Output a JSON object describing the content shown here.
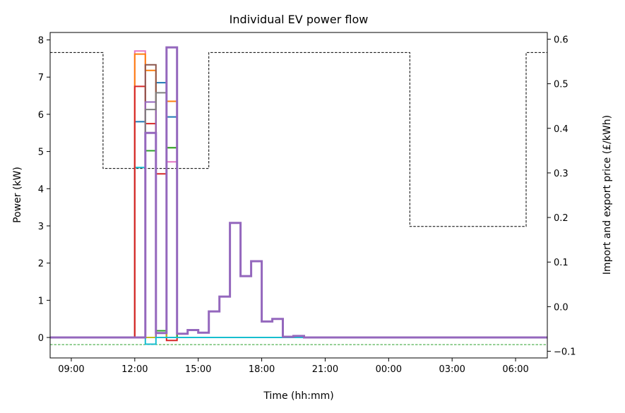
{
  "chart_data": {
    "type": "line",
    "title": "Individual EV power flow",
    "xlabel": "Time (hh:mm)",
    "ylabel": "Power (kW)",
    "y2label": "Import and export price (£/kWh)",
    "xlim": [
      8.0,
      31.5
    ],
    "ylim": [
      -0.55,
      8.2
    ],
    "y2lim": [
      -0.115,
      0.615
    ],
    "x_ticks": [
      9,
      12,
      15,
      18,
      21,
      24,
      27,
      30
    ],
    "x_tick_labels": [
      "09:00",
      "12:00",
      "15:00",
      "18:00",
      "21:00",
      "00:00",
      "03:00",
      "06:00"
    ],
    "y_ticks": [
      0,
      1,
      2,
      3,
      4,
      5,
      6,
      7,
      8
    ],
    "y_tick_labels": [
      "0",
      "1",
      "2",
      "3",
      "4",
      "5",
      "6",
      "7",
      "8"
    ],
    "y2_ticks": [
      -0.1,
      0.0,
      0.1,
      0.2,
      0.3,
      0.4,
      0.5,
      0.6
    ],
    "y2_tick_labels": [
      "−0.1",
      "0.0",
      "0.1",
      "0.2",
      "0.3",
      "0.4",
      "0.5",
      "0.6"
    ],
    "grid": false,
    "legend": "none",
    "import_price": {
      "axis": "right",
      "color": "#000000",
      "style": "dashed",
      "x": [
        8.0,
        10.5,
        10.5,
        15.5,
        15.5,
        25.0,
        25.0,
        30.5,
        30.5,
        31.5
      ],
      "y": [
        0.57,
        0.57,
        0.31,
        0.31,
        0.57,
        0.57,
        0.18,
        0.18,
        0.57,
        0.57
      ]
    },
    "export_price": {
      "axis": "right",
      "color": "#2ca02c",
      "style": "dashed",
      "x": [
        8.0,
        31.5
      ],
      "y": [
        -0.085,
        -0.085
      ]
    },
    "series": [
      {
        "color": "#17becf",
        "x": [
          8.0,
          12.0,
          12.0,
          12.5,
          12.5,
          31.5
        ],
        "y": [
          0,
          0,
          4.57,
          4.57,
          0,
          0
        ]
      },
      {
        "color": "#1f77b4",
        "x": [
          8.0,
          12.0,
          12.0,
          12.5,
          12.5,
          13.0,
          13.0,
          13.5,
          13.5,
          14.0,
          14.0,
          31.5
        ],
        "y": [
          0,
          0,
          5.8,
          5.8,
          0,
          0,
          6.85,
          6.85,
          5.93,
          5.93,
          0,
          0
        ]
      },
      {
        "color": "#e377c2",
        "x": [
          8.0,
          12.0,
          12.0,
          12.5,
          12.5,
          13.5,
          13.5,
          14.0,
          14.0,
          31.5
        ],
        "y": [
          0,
          0,
          7.7,
          7.7,
          0,
          0,
          4.72,
          4.72,
          0,
          0
        ]
      },
      {
        "color": "#ff7f0e",
        "x": [
          8.0,
          12.0,
          12.0,
          12.5,
          12.5,
          13.0,
          13.0,
          13.5,
          13.5,
          14.0,
          14.0,
          31.5
        ],
        "y": [
          0,
          0,
          7.62,
          7.62,
          7.18,
          7.18,
          0,
          0,
          6.35,
          6.35,
          0,
          0
        ]
      },
      {
        "color": "#d62728",
        "x": [
          8.0,
          12.0,
          12.0,
          12.5,
          12.5,
          13.0,
          13.0,
          13.5,
          13.5,
          14.0,
          14.0,
          31.5
        ],
        "y": [
          0,
          0,
          6.75,
          6.75,
          5.75,
          5.75,
          4.4,
          4.4,
          -0.08,
          -0.08,
          0,
          0
        ]
      },
      {
        "color": "#8c564b",
        "x": [
          8.0,
          12.5,
          12.5,
          13.0,
          13.0,
          31.5
        ],
        "y": [
          0,
          0,
          7.33,
          7.33,
          0,
          0
        ]
      },
      {
        "color": "#9467bd",
        "x": [
          8.0,
          12.5,
          12.5,
          13.0,
          13.0,
          31.5
        ],
        "y": [
          0,
          0,
          6.33,
          6.33,
          0,
          0
        ]
      },
      {
        "color": "#7f7f7f",
        "x": [
          8.0,
          12.5,
          12.5,
          13.0,
          13.0,
          13.5,
          13.5,
          31.5
        ],
        "y": [
          0,
          0,
          6.13,
          6.13,
          6.58,
          6.58,
          0,
          0
        ]
      },
      {
        "color": "#bcbd22",
        "x": [
          8.0,
          13.5,
          13.5,
          14.0,
          14.0,
          31.5
        ],
        "y": [
          0,
          0,
          5.1,
          5.1,
          0,
          0
        ]
      },
      {
        "color": "#2ca02c",
        "x": [
          8.0,
          12.5,
          12.5,
          13.0,
          13.0,
          13.5,
          13.5,
          14.0,
          14.0,
          31.5
        ],
        "y": [
          0,
          0,
          5.02,
          5.02,
          0.18,
          0.18,
          5.1,
          5.1,
          0,
          0
        ]
      },
      {
        "color": "#17becf",
        "x": [
          8.0,
          12.5,
          12.5,
          13.0,
          13.0,
          31.5
        ],
        "y": [
          0,
          0,
          -0.18,
          -0.18,
          0,
          0
        ]
      },
      {
        "color": "#9467bd",
        "x": [
          8.0,
          12.5,
          12.5,
          13.0,
          13.0,
          13.5,
          13.5,
          14.0,
          14.0,
          14.5,
          14.5,
          15.0,
          15.0,
          15.5,
          15.5,
          16.0,
          16.0,
          16.5,
          16.5,
          17.0,
          17.0,
          17.5,
          17.5,
          18.0,
          18.0,
          18.5,
          18.5,
          19.0,
          19.0,
          19.5,
          19.5,
          20.0,
          20.0,
          31.5
        ],
        "y": [
          0,
          0,
          5.5,
          5.5,
          0.12,
          0.12,
          7.8,
          7.8,
          0.1,
          0.1,
          0.2,
          0.2,
          0.13,
          0.13,
          0.7,
          0.7,
          1.1,
          1.1,
          3.08,
          3.08,
          1.65,
          1.65,
          2.05,
          2.05,
          0.43,
          0.43,
          0.5,
          0.5,
          0.02,
          0.02,
          0.04,
          0.04,
          0,
          0
        ],
        "thick": true
      }
    ]
  }
}
